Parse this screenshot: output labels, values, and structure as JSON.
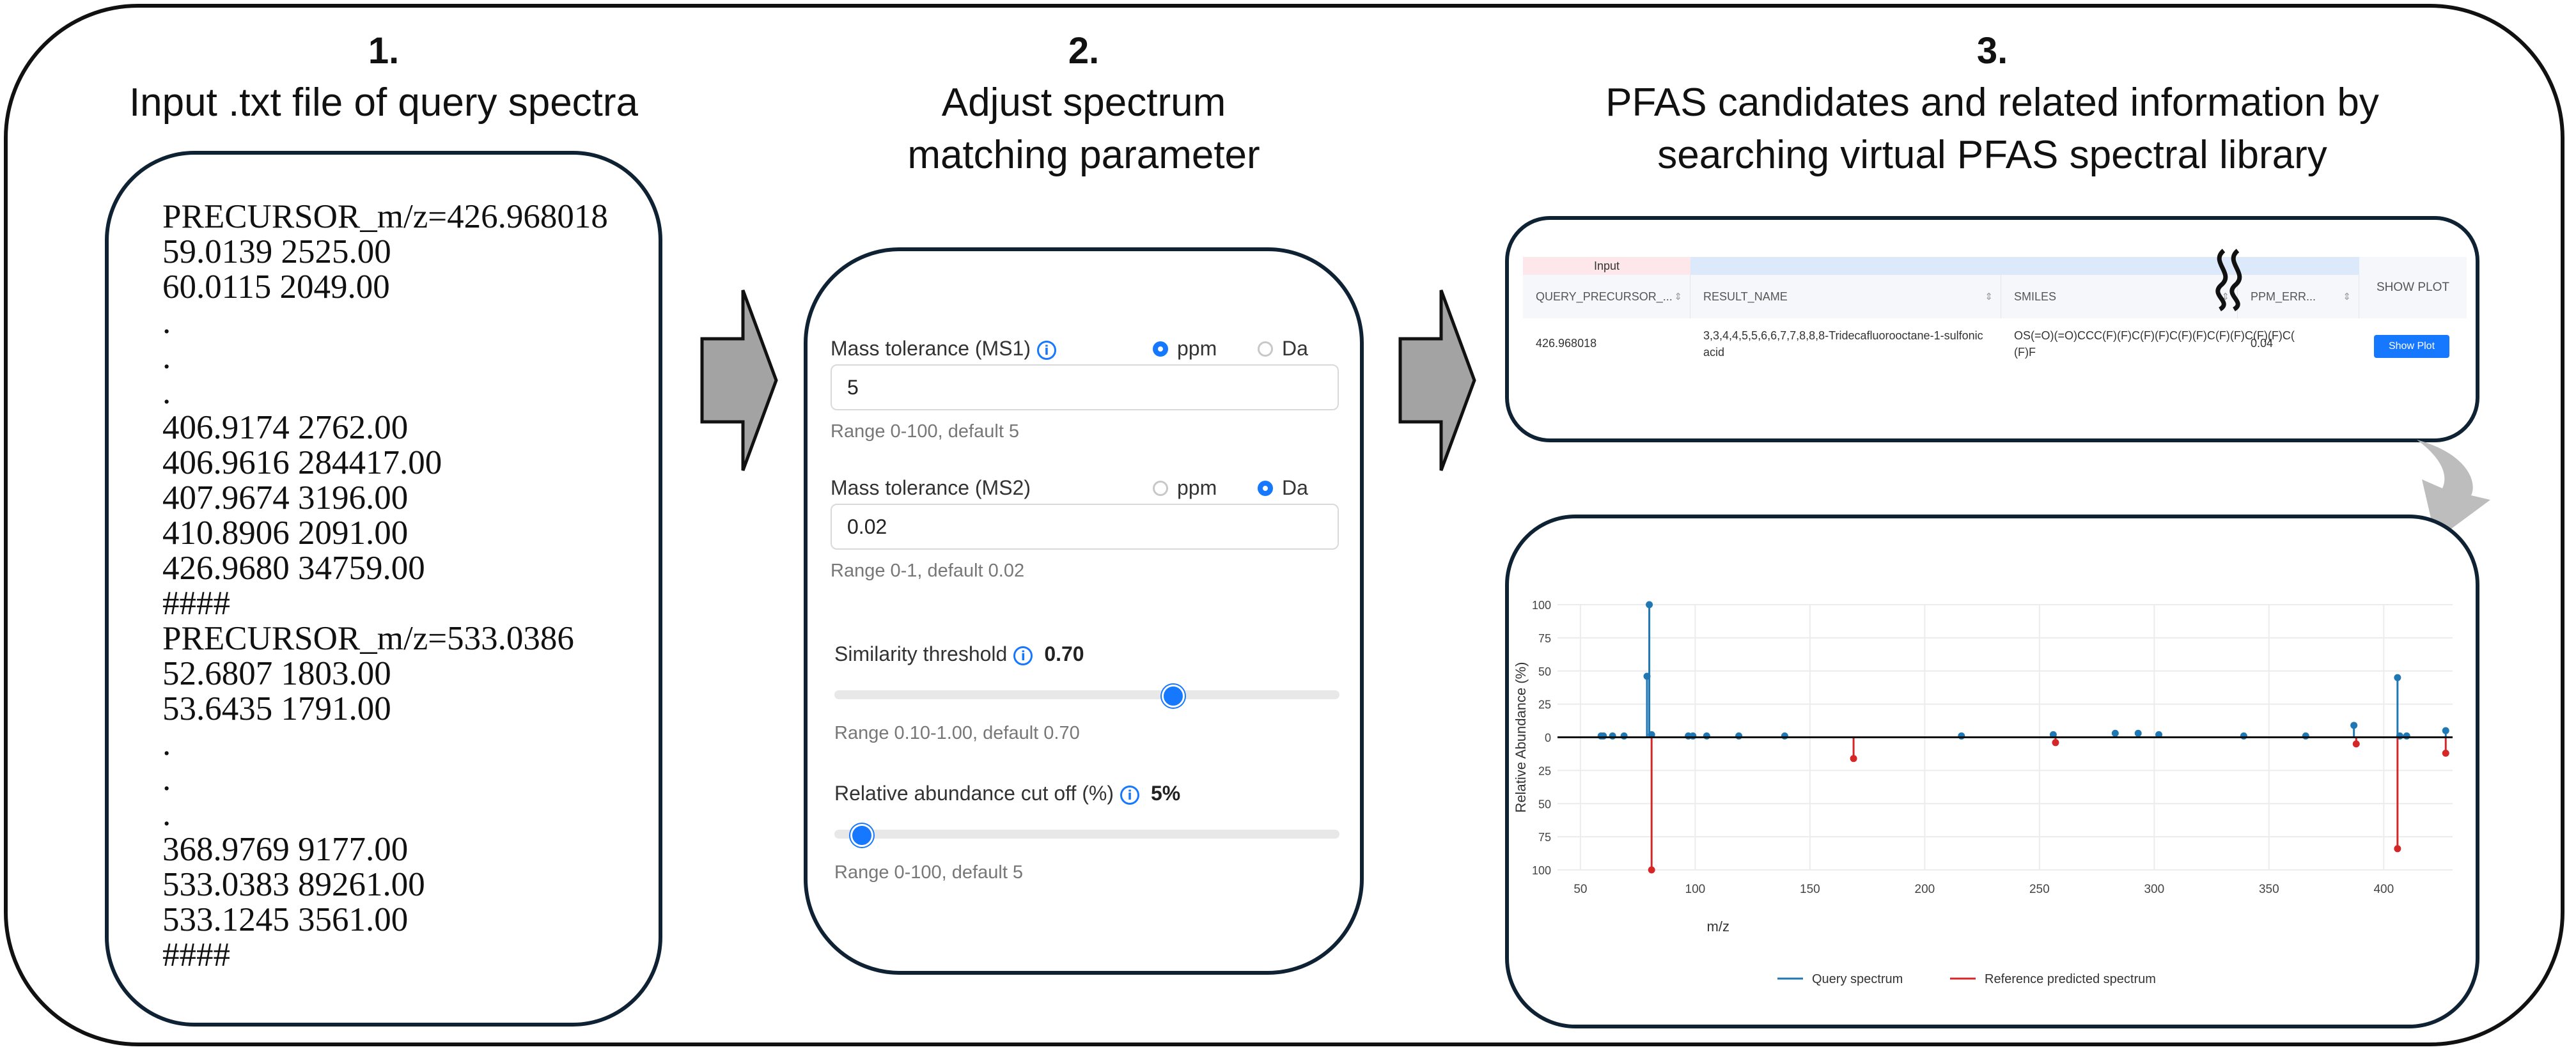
{
  "steps": [
    {
      "num": "1.",
      "lines": [
        "Input .txt file of query spectra"
      ]
    },
    {
      "num": "2.",
      "lines": [
        "Adjust spectrum",
        "matching parameter"
      ]
    },
    {
      "num": "3.",
      "lines": [
        "PFAS candidates and related information by",
        "searching virtual PFAS spectral library"
      ]
    }
  ],
  "file_lines": [
    "PRECURSOR_m/z=426.968018",
    "59.0139 2525.00",
    "60.0115 2049.00",
    ".",
    ".",
    ".",
    "406.9174 2762.00",
    "406.9616 284417.00",
    "407.9674 3196.00",
    "410.8906 2091.00",
    "426.9680 34759.00",
    "####",
    "PRECURSOR_m/z=533.0386",
    "52.6807 1803.00",
    "53.6435 1791.00",
    ".",
    ".",
    ".",
    "368.9769 9177.00",
    "533.0383 89261.00",
    "533.1245 3561.00",
    "####"
  ],
  "params": {
    "ms1": {
      "label": "Mass tolerance (MS1)",
      "info_icon": "info-icon",
      "options": [
        "ppm",
        "Da"
      ],
      "selected": "ppm",
      "value": "5",
      "hint": "Range 0-100, default 5"
    },
    "ms2": {
      "label": "Mass tolerance (MS2)",
      "options": [
        "ppm",
        "Da"
      ],
      "selected": "Da",
      "value": "0.02",
      "hint": "Range 0-1, default 0.02"
    },
    "similarity": {
      "label": "Similarity threshold",
      "value_text": "0.70",
      "value": 0.7,
      "min": 0.1,
      "max": 1.0,
      "hint": "Range 0.10-1.00, default 0.70"
    },
    "abundance": {
      "label": "Relative abundance cut off (%)",
      "value_text": "5%",
      "value": 5,
      "min": 0,
      "max": 100,
      "hint": "Range 0-100, default 5"
    }
  },
  "table": {
    "group_label": "Input",
    "columns": [
      "QUERY_PRECURSOR_...",
      "RESULT_NAME",
      "SMILES",
      "PPM_ERR...",
      "SHOW PLOT"
    ],
    "row": {
      "query": "426.968018",
      "name_lines": [
        "3,3,4,4,5,5,6,6,7,7,8,8,8-Tridecafluorooctane-1-sulfonic",
        "acid"
      ],
      "smiles_lines": [
        "OS(=O)(=O)CCC(F)(F)C(F)(F)C(F)(F)C(F)(F)C(F)(F)C(",
        "(F)F"
      ],
      "ppm": "0.04",
      "button": "Show Plot"
    }
  },
  "colors": {
    "query": "#1f77b4",
    "reference": "#d62728",
    "accent": "#1677ff"
  },
  "chart_data": {
    "type": "bar",
    "subtype": "mirror-stem",
    "xlabel": "m/z",
    "ylabel": "Relative Abundance (%)",
    "xlim": [
      40,
      430
    ],
    "xticks": [
      50,
      100,
      150,
      200,
      250,
      300,
      350,
      400
    ],
    "ylim": [
      -100,
      100
    ],
    "yticks": [
      100,
      75,
      50,
      25,
      0,
      25,
      50,
      75,
      100
    ],
    "grid": true,
    "legend_position": "bottom",
    "series": [
      {
        "name": "Query spectrum",
        "color": "#1f77b4",
        "points": [
          [
            59,
            1
          ],
          [
            60,
            1
          ],
          [
            64,
            1
          ],
          [
            69,
            1
          ],
          [
            79,
            46
          ],
          [
            80,
            100
          ],
          [
            81,
            2
          ],
          [
            97,
            1
          ],
          [
            99,
            1
          ],
          [
            105,
            1
          ],
          [
            119,
            1
          ],
          [
            139,
            1
          ],
          [
            216,
            1
          ],
          [
            256,
            2
          ],
          [
            283,
            3
          ],
          [
            293,
            3
          ],
          [
            302,
            2
          ],
          [
            339,
            1
          ],
          [
            366,
            1
          ],
          [
            387,
            9
          ],
          [
            406,
            45
          ],
          [
            407,
            1
          ],
          [
            410,
            1
          ],
          [
            427,
            5
          ]
        ]
      },
      {
        "name": "Reference predicted spectrum",
        "color": "#d62728",
        "points": [
          [
            81,
            100
          ],
          [
            169,
            16
          ],
          [
            257,
            4
          ],
          [
            388,
            5
          ],
          [
            406,
            84
          ],
          [
            427,
            12
          ]
        ]
      }
    ]
  }
}
